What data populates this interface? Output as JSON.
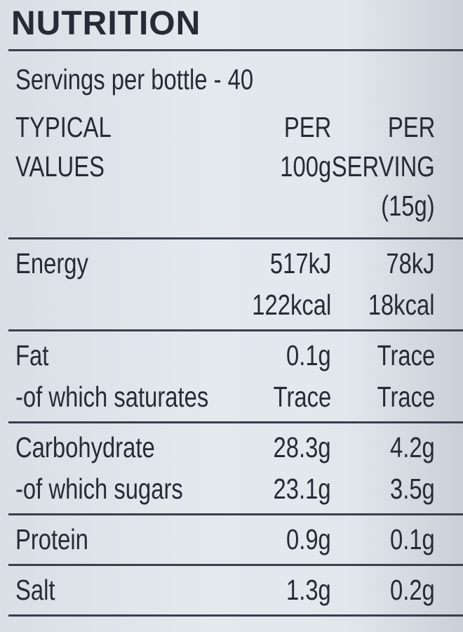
{
  "title": "NUTRITION",
  "servings": "Servings per bottle - 40",
  "header": {
    "label": [
      "TYPICAL",
      "VALUES"
    ],
    "per_100g": [
      "PER",
      "100g"
    ],
    "per_serving": [
      "PER",
      "SERVING",
      "(15g)"
    ]
  },
  "sections": [
    [
      {
        "label": "Energy",
        "per_100g": [
          "517kJ",
          "122kcal"
        ],
        "per_serving": [
          "78kJ",
          "18kcal"
        ]
      }
    ],
    [
      {
        "label": "Fat",
        "per_100g": [
          "0.1g"
        ],
        "per_serving": [
          "Trace"
        ]
      },
      {
        "label": "-of which saturates",
        "per_100g": [
          "Trace"
        ],
        "per_serving": [
          "Trace"
        ]
      }
    ],
    [
      {
        "label": "Carbohydrate",
        "per_100g": [
          "28.3g"
        ],
        "per_serving": [
          "4.2g"
        ]
      },
      {
        "label": "-of which sugars",
        "per_100g": [
          "23.1g"
        ],
        "per_serving": [
          "3.5g"
        ]
      }
    ],
    [
      {
        "label": "Protein",
        "per_100g": [
          "0.9g"
        ],
        "per_serving": [
          "0.1g"
        ]
      }
    ],
    [
      {
        "label": "Salt",
        "per_100g": [
          "1.3g"
        ],
        "per_serving": [
          "0.2g"
        ]
      }
    ]
  ]
}
